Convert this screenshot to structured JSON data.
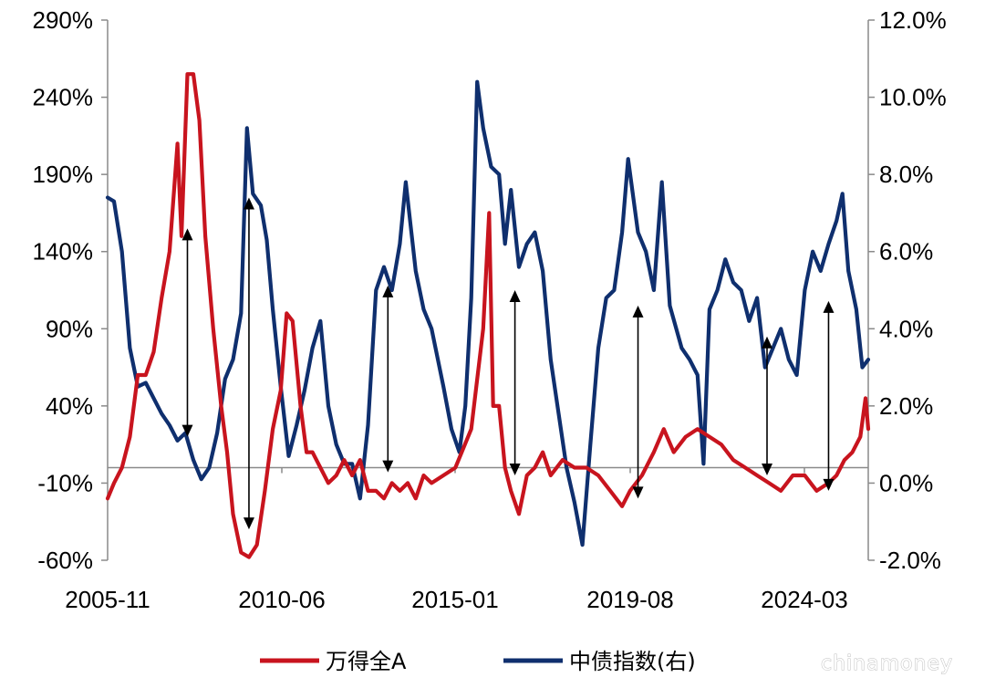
{
  "chart_data": {
    "type": "line",
    "title": "",
    "xlabel": "",
    "ylabel": "",
    "x_tick_labels": [
      "2005-11",
      "2010-06",
      "2015-01",
      "2019-08",
      "2024-03"
    ],
    "x_range": [
      2005.84,
      2025.0
    ],
    "y_left": {
      "range": [
        -60,
        290
      ],
      "tick_labels": [
        "290%",
        "240%",
        "190%",
        "140%",
        "90%",
        "40%",
        "-10%",
        "-60%"
      ]
    },
    "y_right": {
      "range": [
        -2.0,
        12.0
      ],
      "tick_labels": [
        "12.0%",
        "10.0%",
        "8.0%",
        "6.0%",
        "4.0%",
        "2.0%",
        "0.0%",
        "-2.0%"
      ]
    },
    "zero_line_right_value": 0.4,
    "legend_position": "bottom-center",
    "series": [
      {
        "name": "万得全A",
        "axis": "left",
        "color": "#c8141e",
        "points": [
          [
            2005.84,
            -20
          ],
          [
            2006.0,
            -10
          ],
          [
            2006.2,
            0
          ],
          [
            2006.4,
            20
          ],
          [
            2006.6,
            60
          ],
          [
            2006.8,
            60
          ],
          [
            2007.0,
            75
          ],
          [
            2007.2,
            110
          ],
          [
            2007.4,
            140
          ],
          [
            2007.6,
            210
          ],
          [
            2007.7,
            150
          ],
          [
            2007.85,
            255
          ],
          [
            2008.0,
            255
          ],
          [
            2008.15,
            225
          ],
          [
            2008.3,
            150
          ],
          [
            2008.5,
            90
          ],
          [
            2008.7,
            40
          ],
          [
            2008.85,
            10
          ],
          [
            2009.0,
            -30
          ],
          [
            2009.2,
            -55
          ],
          [
            2009.4,
            -58
          ],
          [
            2009.6,
            -50
          ],
          [
            2009.8,
            -15
          ],
          [
            2010.0,
            25
          ],
          [
            2010.2,
            50
          ],
          [
            2010.35,
            100
          ],
          [
            2010.5,
            95
          ],
          [
            2010.7,
            40
          ],
          [
            2010.85,
            10
          ],
          [
            2011.0,
            10
          ],
          [
            2011.2,
            0
          ],
          [
            2011.4,
            -10
          ],
          [
            2011.6,
            -5
          ],
          [
            2011.8,
            5
          ],
          [
            2012.0,
            -5
          ],
          [
            2012.2,
            5
          ],
          [
            2012.4,
            -15
          ],
          [
            2012.6,
            -15
          ],
          [
            2012.8,
            -20
          ],
          [
            2013.0,
            -10
          ],
          [
            2013.2,
            -15
          ],
          [
            2013.4,
            -10
          ],
          [
            2013.6,
            -20
          ],
          [
            2013.8,
            -5
          ],
          [
            2014.0,
            -10
          ],
          [
            2014.3,
            -5
          ],
          [
            2014.6,
            0
          ],
          [
            2015.0,
            25
          ],
          [
            2015.3,
            90
          ],
          [
            2015.45,
            165
          ],
          [
            2015.55,
            40
          ],
          [
            2015.7,
            40
          ],
          [
            2015.85,
            0
          ],
          [
            2016.0,
            -15
          ],
          [
            2016.2,
            -30
          ],
          [
            2016.4,
            -5
          ],
          [
            2016.6,
            0
          ],
          [
            2016.8,
            10
          ],
          [
            2017.0,
            -5
          ],
          [
            2017.3,
            5
          ],
          [
            2017.6,
            0
          ],
          [
            2017.9,
            0
          ],
          [
            2018.2,
            -5
          ],
          [
            2018.5,
            -15
          ],
          [
            2018.8,
            -25
          ],
          [
            2019.0,
            -15
          ],
          [
            2019.3,
            -5
          ],
          [
            2019.6,
            10
          ],
          [
            2019.85,
            25
          ],
          [
            2020.1,
            10
          ],
          [
            2020.4,
            20
          ],
          [
            2020.7,
            25
          ],
          [
            2021.0,
            20
          ],
          [
            2021.3,
            15
          ],
          [
            2021.6,
            5
          ],
          [
            2021.9,
            0
          ],
          [
            2022.2,
            -5
          ],
          [
            2022.5,
            -10
          ],
          [
            2022.8,
            -15
          ],
          [
            2023.1,
            -5
          ],
          [
            2023.4,
            -5
          ],
          [
            2023.7,
            -15
          ],
          [
            2024.0,
            -10
          ],
          [
            2024.2,
            -5
          ],
          [
            2024.4,
            5
          ],
          [
            2024.6,
            10
          ],
          [
            2024.8,
            20
          ],
          [
            2024.93,
            45
          ],
          [
            2025.0,
            25
          ]
        ]
      },
      {
        "name": "中债指数(右)",
        "axis": "right",
        "color": "#0f2f6e",
        "points": [
          [
            2005.84,
            7.4
          ],
          [
            2006.0,
            7.3
          ],
          [
            2006.2,
            6.0
          ],
          [
            2006.4,
            3.5
          ],
          [
            2006.6,
            2.5
          ],
          [
            2006.8,
            2.6
          ],
          [
            2007.0,
            2.2
          ],
          [
            2007.2,
            1.8
          ],
          [
            2007.4,
            1.5
          ],
          [
            2007.6,
            1.1
          ],
          [
            2007.8,
            1.3
          ],
          [
            2008.0,
            0.6
          ],
          [
            2008.2,
            0.1
          ],
          [
            2008.4,
            0.4
          ],
          [
            2008.6,
            1.3
          ],
          [
            2008.8,
            2.7
          ],
          [
            2009.0,
            3.2
          ],
          [
            2009.2,
            4.4
          ],
          [
            2009.35,
            9.2
          ],
          [
            2009.5,
            7.5
          ],
          [
            2009.7,
            7.2
          ],
          [
            2009.85,
            6.3
          ],
          [
            2010.0,
            4.5
          ],
          [
            2010.2,
            2.5
          ],
          [
            2010.4,
            0.7
          ],
          [
            2010.6,
            1.5
          ],
          [
            2010.8,
            2.4
          ],
          [
            2011.0,
            3.5
          ],
          [
            2011.2,
            4.2
          ],
          [
            2011.4,
            2.0
          ],
          [
            2011.6,
            1.0
          ],
          [
            2011.8,
            0.5
          ],
          [
            2012.0,
            0.5
          ],
          [
            2012.2,
            -0.4
          ],
          [
            2012.4,
            1.5
          ],
          [
            2012.6,
            5.0
          ],
          [
            2012.8,
            5.6
          ],
          [
            2013.0,
            5.0
          ],
          [
            2013.2,
            6.2
          ],
          [
            2013.35,
            7.8
          ],
          [
            2013.6,
            5.5
          ],
          [
            2013.8,
            4.5
          ],
          [
            2014.0,
            4.0
          ],
          [
            2014.3,
            2.5
          ],
          [
            2014.5,
            1.4
          ],
          [
            2014.7,
            0.8
          ],
          [
            2014.85,
            2.0
          ],
          [
            2015.0,
            4.8
          ],
          [
            2015.15,
            10.4
          ],
          [
            2015.3,
            9.2
          ],
          [
            2015.5,
            8.2
          ],
          [
            2015.7,
            8.0
          ],
          [
            2015.85,
            6.2
          ],
          [
            2016.0,
            7.6
          ],
          [
            2016.2,
            5.6
          ],
          [
            2016.4,
            6.2
          ],
          [
            2016.6,
            6.5
          ],
          [
            2016.8,
            5.5
          ],
          [
            2017.0,
            3.2
          ],
          [
            2017.2,
            1.8
          ],
          [
            2017.4,
            0.4
          ],
          [
            2017.6,
            -0.5
          ],
          [
            2017.8,
            -1.6
          ],
          [
            2018.0,
            1.0
          ],
          [
            2018.2,
            3.5
          ],
          [
            2018.4,
            4.8
          ],
          [
            2018.6,
            5.0
          ],
          [
            2018.8,
            6.5
          ],
          [
            2018.95,
            8.4
          ],
          [
            2019.2,
            6.5
          ],
          [
            2019.4,
            6.0
          ],
          [
            2019.6,
            5.0
          ],
          [
            2019.8,
            7.8
          ],
          [
            2020.0,
            4.6
          ],
          [
            2020.3,
            3.5
          ],
          [
            2020.5,
            3.2
          ],
          [
            2020.7,
            2.8
          ],
          [
            2020.85,
            0.5
          ],
          [
            2021.0,
            4.5
          ],
          [
            2021.2,
            5.0
          ],
          [
            2021.4,
            5.8
          ],
          [
            2021.6,
            5.2
          ],
          [
            2021.8,
            5.0
          ],
          [
            2022.0,
            4.2
          ],
          [
            2022.2,
            4.8
          ],
          [
            2022.4,
            3.0
          ],
          [
            2022.6,
            3.5
          ],
          [
            2022.8,
            4.0
          ],
          [
            2023.0,
            3.2
          ],
          [
            2023.2,
            2.8
          ],
          [
            2023.4,
            5.0
          ],
          [
            2023.6,
            6.0
          ],
          [
            2023.8,
            5.5
          ],
          [
            2024.0,
            6.2
          ],
          [
            2024.2,
            6.8
          ],
          [
            2024.35,
            7.5
          ],
          [
            2024.5,
            5.5
          ],
          [
            2024.7,
            4.5
          ],
          [
            2024.85,
            3.0
          ],
          [
            2025.0,
            3.2
          ]
        ]
      }
    ],
    "annotations": {
      "type": "double-headed-arrows",
      "arrows": [
        {
          "x": 2007.85,
          "left_top": 155,
          "left_bottom": 20
        },
        {
          "x": 2009.4,
          "left_top": 175,
          "left_bottom": -40
        },
        {
          "x": 2012.9,
          "left_top": 118,
          "left_bottom": -3
        },
        {
          "x": 2016.1,
          "left_top": 115,
          "left_bottom": -5
        },
        {
          "x": 2019.2,
          "left_top": 105,
          "left_bottom": -20
        },
        {
          "x": 2022.45,
          "left_top": 85,
          "left_bottom": -5
        },
        {
          "x": 2024.0,
          "left_top": 108,
          "left_bottom": -15
        }
      ]
    }
  },
  "watermark": "chinamoney"
}
